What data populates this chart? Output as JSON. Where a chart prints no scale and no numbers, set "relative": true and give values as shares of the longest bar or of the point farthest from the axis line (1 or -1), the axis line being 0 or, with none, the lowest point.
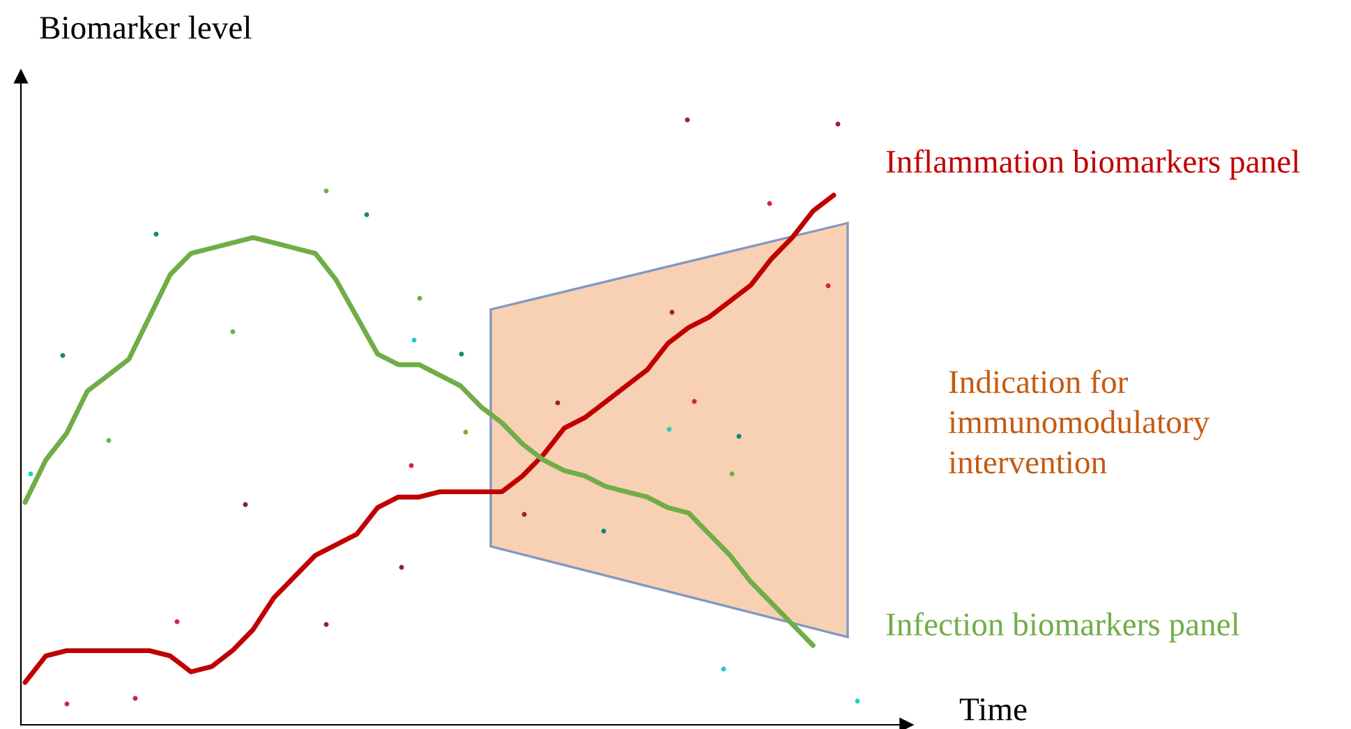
{
  "chart_data": {
    "type": "line",
    "relative": true,
    "ylabel": "Biomarker level",
    "xlabel": "Time",
    "legend": false,
    "grid": false,
    "annotations": [
      "Indication for\nimmunomodulatory\nintervention"
    ],
    "categories": [
      null,
      null,
      null,
      null,
      null,
      null,
      null,
      null,
      null,
      null,
      null,
      null,
      null,
      null,
      null,
      null,
      null,
      null,
      null,
      null,
      null,
      null,
      null,
      null,
      null,
      null,
      null,
      null,
      null,
      null,
      null,
      null,
      null,
      null,
      null,
      null,
      null,
      null,
      null,
      null
    ],
    "series": [
      {
        "name": "Inflammation biomarkers panel",
        "color": "#c00000",
        "values": [
          0.08,
          0.13,
          0.14,
          0.14,
          0.14,
          0.14,
          0.14,
          0.13,
          0.1,
          0.11,
          0.14,
          0.18,
          0.24,
          0.28,
          0.32,
          0.34,
          0.36,
          0.41,
          0.43,
          0.43,
          0.44,
          0.44,
          0.44,
          0.44,
          0.47,
          0.51,
          0.56,
          0.58,
          0.61,
          0.64,
          0.67,
          0.72,
          0.75,
          0.77,
          0.8,
          0.83,
          0.88,
          0.92,
          0.97,
          1
        ]
      },
      {
        "name": "Infection biomarkers panel",
        "color": "#70ad47",
        "values": [
          0.42,
          0.5,
          0.55,
          0.63,
          0.66,
          0.69,
          0.77,
          0.85,
          0.89,
          0.9,
          0.91,
          0.92,
          0.91,
          0.9,
          0.89,
          0.84,
          0.77,
          0.7,
          0.68,
          0.68,
          0.66,
          0.64,
          0.6,
          0.57,
          0.53,
          0.5,
          0.48,
          0.47,
          0.45,
          0.44,
          0.43,
          0.41,
          0.4,
          0.36,
          0.32,
          0.27,
          0.23,
          0.19,
          0.15,
          null
        ]
      }
    ]
  }
}
